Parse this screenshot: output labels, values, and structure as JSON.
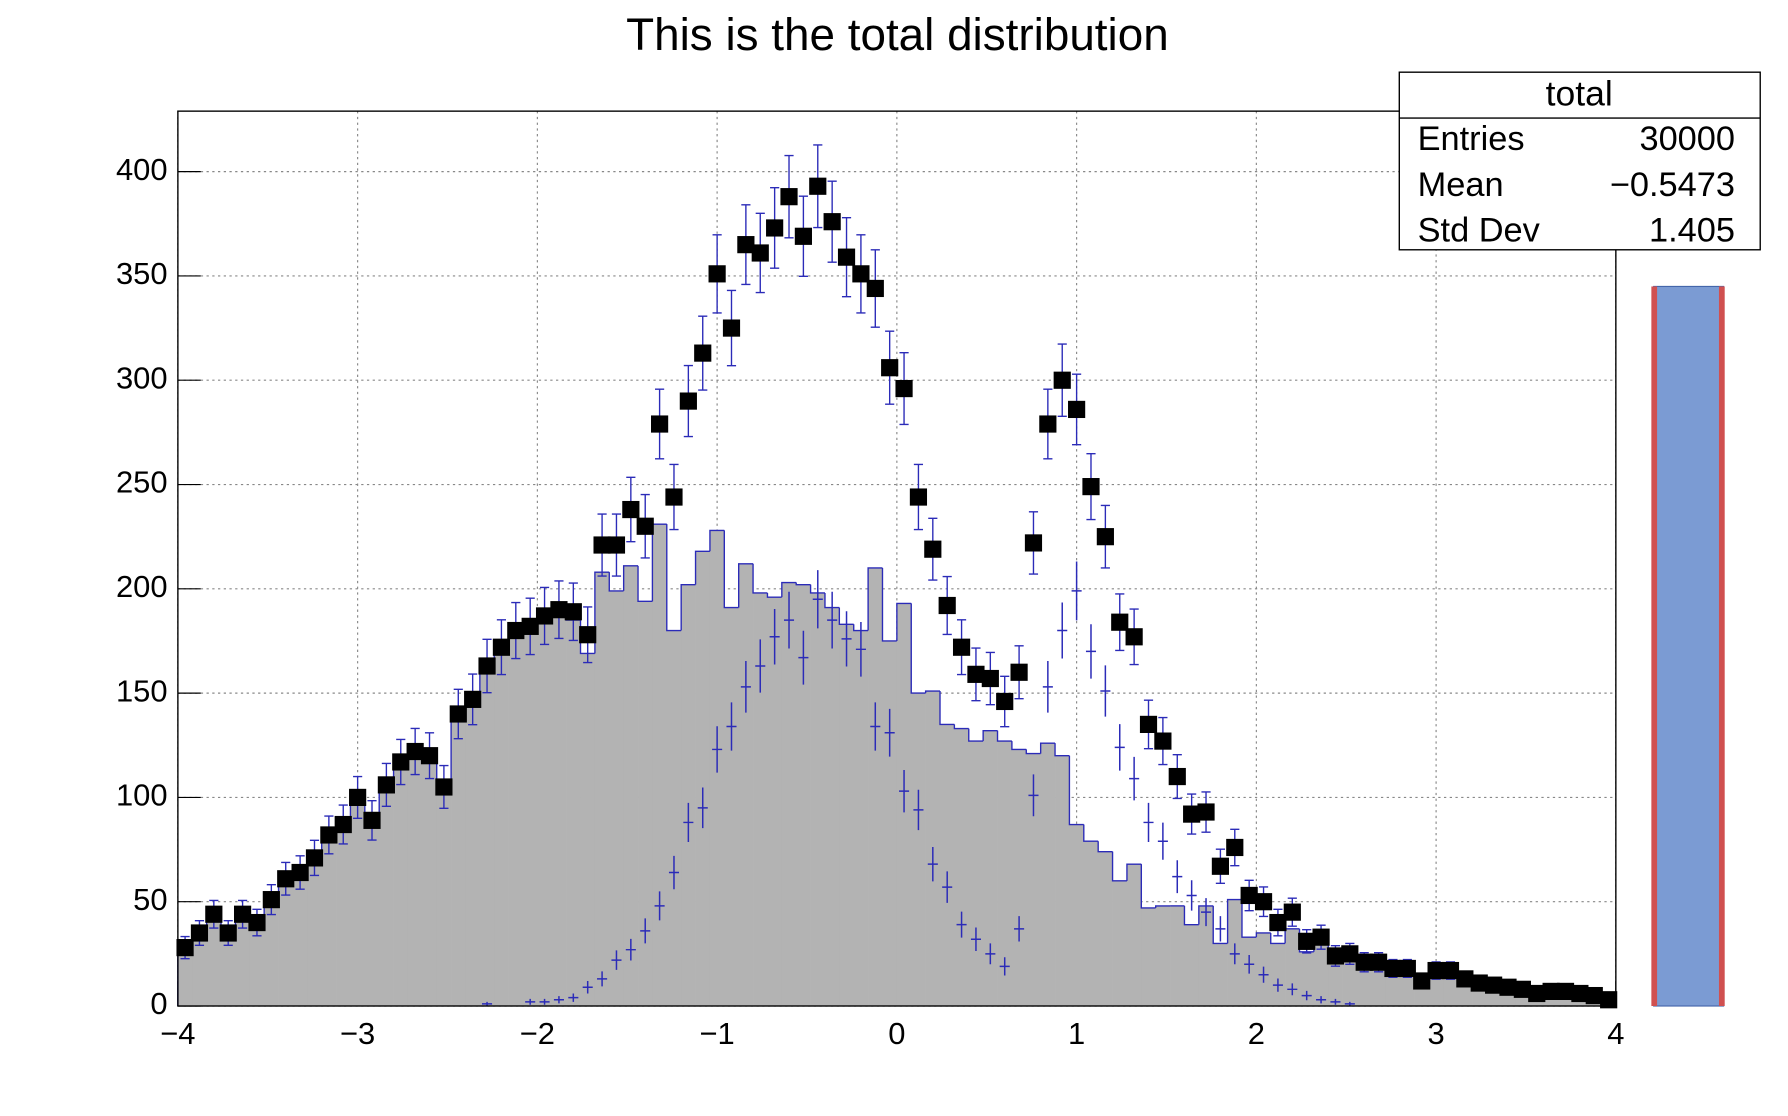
{
  "chart_data": {
    "type": "histogram",
    "title": "This is the total distribution",
    "bins": [
      -4,
      -3.92,
      -3.84,
      -3.76,
      -3.68,
      -3.6,
      -3.52,
      -3.44,
      -3.36,
      -3.28,
      -3.2,
      -3.12,
      -3.04,
      -2.96,
      -2.88,
      -2.8,
      -2.72,
      -2.64,
      -2.56,
      -2.48,
      -2.4,
      -2.32,
      -2.24,
      -2.16,
      -2.08,
      -2,
      -1.92,
      -1.84,
      -1.76,
      -1.68,
      -1.6,
      -1.52,
      -1.44,
      -1.36,
      -1.28,
      -1.2,
      -1.12,
      -1.04,
      -0.96,
      -0.88,
      -0.8,
      -0.72,
      -0.64,
      -0.56,
      -0.48,
      -0.4,
      -0.32,
      -0.24,
      -0.16,
      -0.08,
      0,
      0.08,
      0.16,
      0.24,
      0.32,
      0.4,
      0.48,
      0.56,
      0.64,
      0.72,
      0.8,
      0.88,
      0.96,
      1.04,
      1.12,
      1.2,
      1.28,
      1.36,
      1.44,
      1.52,
      1.6,
      1.68,
      1.76,
      1.84,
      1.92,
      2,
      2.08,
      2.16,
      2.24,
      2.32,
      2.4,
      2.48,
      2.56,
      2.64,
      2.72,
      2.8,
      2.88,
      2.96,
      3.04,
      3.12,
      3.2,
      3.28,
      3.36,
      3.44,
      3.52,
      3.6,
      3.68,
      3.76,
      3.84,
      3.92,
      4
    ],
    "series": [
      {
        "style": "filled-step",
        "color": "#b3b3b3",
        "line_color": "#2b2bb8",
        "values": [
          28,
          35,
          44,
          35,
          44,
          40,
          51,
          61,
          64,
          71,
          82,
          87,
          100,
          89,
          106,
          117,
          122,
          120,
          105,
          140,
          147,
          162,
          172,
          180,
          180,
          185,
          187,
          185,
          169,
          208,
          199,
          211,
          194,
          231,
          180,
          202,
          218,
          228,
          191,
          212,
          198,
          196,
          203,
          202,
          198,
          191,
          183,
          180,
          210,
          175,
          193,
          150,
          151,
          135,
          133,
          127,
          132,
          127,
          123,
          121,
          126,
          120,
          87,
          79,
          74,
          60,
          68,
          47,
          48,
          48,
          39,
          48,
          30,
          51,
          33,
          35,
          30,
          37,
          26,
          30,
          22,
          24,
          21,
          21,
          18,
          18,
          12,
          17,
          17,
          13,
          11,
          10,
          9,
          8,
          6,
          7,
          7,
          6,
          5,
          3
        ]
      },
      {
        "style": "crosses",
        "color": "#2b2bb8",
        "errors": "poisson",
        "values": [
          0,
          0,
          0,
          0,
          0,
          0,
          0,
          0,
          0,
          0,
          0,
          0,
          0,
          0,
          0,
          0,
          0,
          0,
          0,
          0,
          0,
          1,
          0,
          0,
          2,
          2,
          3,
          4,
          9,
          13,
          22,
          27,
          36,
          48,
          64,
          88,
          95,
          123,
          134,
          153,
          163,
          177,
          185,
          167,
          195,
          185,
          176,
          171,
          134,
          131,
          103,
          94,
          68,
          57,
          39,
          32,
          25,
          19,
          37,
          101,
          153,
          180,
          199,
          170,
          151,
          124,
          109,
          88,
          79,
          62,
          53,
          45,
          37,
          25,
          20,
          15,
          10,
          8,
          5,
          3,
          2,
          1,
          0,
          0,
          0,
          0,
          0,
          0,
          0,
          0,
          0,
          0,
          0,
          0,
          0,
          0,
          0,
          0,
          0,
          0
        ]
      },
      {
        "style": "markers",
        "color": "#000000",
        "error_color": "#2b2bb8",
        "errors": "poisson",
        "values": [
          28,
          35,
          44,
          35,
          44,
          40,
          51,
          61,
          64,
          71,
          82,
          87,
          100,
          89,
          106,
          117,
          122,
          120,
          105,
          140,
          147,
          163,
          172,
          180,
          182,
          187,
          190,
          189,
          178,
          221,
          221,
          238,
          230,
          279,
          244,
          290,
          313,
          351,
          325,
          365,
          361,
          373,
          388,
          369,
          393,
          376,
          359,
          351,
          344,
          306,
          296,
          244,
          219,
          192,
          172,
          159,
          157,
          146,
          160,
          222,
          279,
          300,
          286,
          249,
          225,
          184,
          177,
          135,
          127,
          110,
          92,
          93,
          67,
          76,
          53,
          50,
          40,
          45,
          31,
          33,
          24,
          25,
          21,
          21,
          18,
          18,
          12,
          17,
          17,
          13,
          11,
          10,
          9,
          8,
          6,
          7,
          7,
          6,
          5,
          3
        ]
      }
    ],
    "xlim": [
      -4,
      4
    ],
    "xticks": [
      {
        "value": -4,
        "label": "−4"
      },
      {
        "value": -3,
        "label": "−3"
      },
      {
        "value": -2,
        "label": "−2"
      },
      {
        "value": -1,
        "label": "−1"
      },
      0,
      1,
      2,
      3,
      4
    ],
    "ylim": [
      0,
      429
    ],
    "yticks": [
      0,
      50,
      100,
      150,
      200,
      250,
      300,
      350,
      400
    ],
    "grid": true,
    "stats": {
      "title": "total",
      "rows": [
        {
          "name": "Entries",
          "value": 30000
        },
        {
          "name": "Mean",
          "value": -0.5473,
          "value_label": "−0.5473"
        },
        {
          "name": "Std Dev",
          "value": 1.405
        }
      ]
    }
  }
}
